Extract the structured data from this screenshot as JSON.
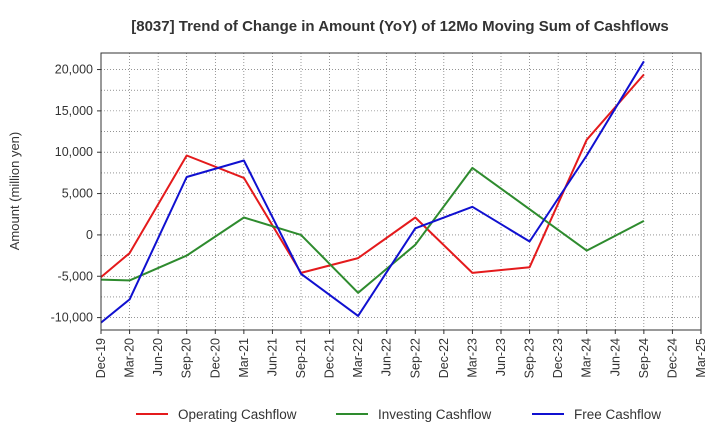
{
  "chart_data": {
    "type": "line",
    "title": "[8037]  Trend of Change in Amount (YoY) of 12Mo Moving Sum of Cashflows",
    "xlabel": "",
    "ylabel": "Amount (million yen)",
    "ylim": [
      -11500,
      22000
    ],
    "yticks": [
      -10000,
      -5000,
      0,
      5000,
      10000,
      15000,
      20000
    ],
    "ytick_labels": [
      "-10,000",
      "-5,000",
      "0",
      "5,000",
      "10,000",
      "15,000",
      "20,000"
    ],
    "categories": [
      "Dec-19",
      "Mar-20",
      "Jun-20",
      "Sep-20",
      "Dec-20",
      "Mar-21",
      "Jun-21",
      "Sep-21",
      "Dec-21",
      "Mar-22",
      "Jun-22",
      "Sep-22",
      "Dec-22",
      "Mar-23",
      "Jun-23",
      "Sep-23",
      "Dec-23",
      "Mar-24",
      "Jun-24",
      "Sep-24",
      "Dec-24",
      "Mar-25"
    ],
    "grid": true,
    "legend_position": "bottom",
    "series": [
      {
        "name": "Operating Cashflow",
        "color": "#e41a1c",
        "values": [
          -5100,
          -2200,
          null,
          9600,
          null,
          6900,
          null,
          -4600,
          null,
          -2800,
          null,
          2100,
          null,
          -4600,
          null,
          -3900,
          null,
          11500,
          null,
          19400,
          null,
          null
        ]
      },
      {
        "name": "Investing Cashflow",
        "color": "#2e8b2e",
        "values": [
          -5400,
          -5500,
          null,
          -2500,
          null,
          2100,
          null,
          0,
          null,
          -7000,
          null,
          -1200,
          null,
          8100,
          null,
          null,
          null,
          -1900,
          null,
          1700,
          null,
          null
        ]
      },
      {
        "name": "Free Cashflow",
        "color": "#1010d0",
        "values": [
          -10600,
          -7800,
          null,
          7000,
          null,
          9000,
          null,
          -4700,
          null,
          -9800,
          null,
          800,
          null,
          3400,
          null,
          -800,
          null,
          9600,
          null,
          21000,
          null,
          null
        ]
      }
    ]
  }
}
